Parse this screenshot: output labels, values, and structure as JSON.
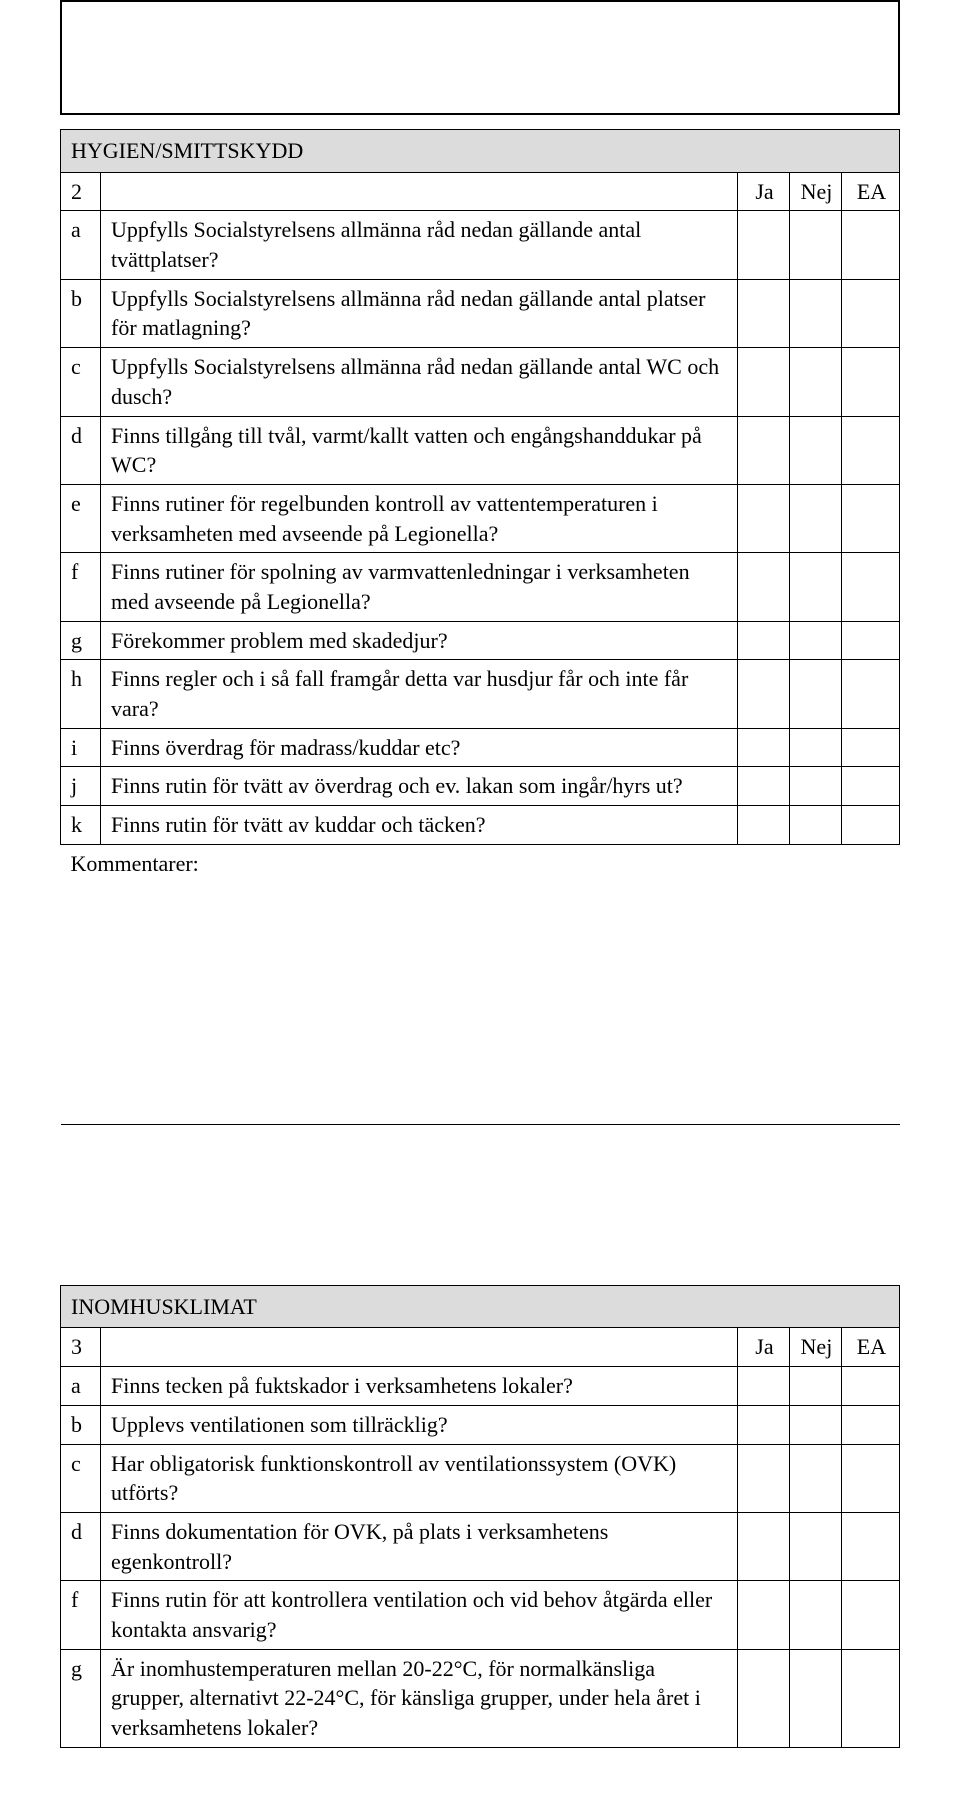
{
  "colors": {
    "section_bg": "#dcdcdc",
    "border": "#000000",
    "page_bg": "#ffffff",
    "text": "#000000"
  },
  "headers": {
    "ja": "Ja",
    "nej": "Nej",
    "ea": "EA"
  },
  "kommentarer_label": "Kommentarer:",
  "section2": {
    "title": "HYGIEN/SMITTSKYDD",
    "number": "2",
    "rows": [
      {
        "letter": "a",
        "text": "Uppfylls Socialstyrelsens allmänna råd nedan gällande antal tvättplatser?"
      },
      {
        "letter": "b",
        "text": "Uppfylls Socialstyrelsens allmänna råd nedan gällande antal platser för matlagning?"
      },
      {
        "letter": "c",
        "text": "Uppfylls Socialstyrelsens allmänna råd nedan gällande antal WC och dusch?"
      },
      {
        "letter": "d",
        "text": "Finns tillgång till tvål, varmt/kallt vatten och engångshanddukar på WC?"
      },
      {
        "letter": "e",
        "text": "Finns rutiner för regelbunden kontroll av vattentemperaturen i verksamheten med avseende på Legionella?"
      },
      {
        "letter": "f",
        "text": "Finns rutiner för spolning av varmvattenledningar i verksamheten med avseende på Legionella?"
      },
      {
        "letter": "g",
        "text": "Förekommer problem med skadedjur?"
      },
      {
        "letter": "h",
        "text": "Finns regler och i så fall framgår detta var husdjur får och inte får vara?"
      },
      {
        "letter": "i",
        "text": "Finns överdrag för madrass/kuddar etc?"
      },
      {
        "letter": "j",
        "text": "Finns rutin för tvätt av överdrag och ev. lakan som ingår/hyrs ut?"
      },
      {
        "letter": "k",
        "text": "Finns rutin för tvätt av kuddar och täcken?"
      }
    ]
  },
  "section3": {
    "title": "INOMHUSKLIMAT",
    "number": "3",
    "rows": [
      {
        "letter": "a",
        "text": "Finns tecken på fuktskador i verksamhetens lokaler?"
      },
      {
        "letter": "b",
        "text": "Upplevs ventilationen som tillräcklig?"
      },
      {
        "letter": "c",
        "text": "Har obligatorisk funktionskontroll av ventilationssystem (OVK) utförts?"
      },
      {
        "letter": "d",
        "text": "Finns dokumentation för OVK, på plats i verksamhetens egenkontroll?"
      },
      {
        "letter": "f",
        "text": "Finns rutin för att kontrollera ventilation och vid behov åtgärda eller kontakta ansvarig?"
      },
      {
        "letter": "g",
        "text": "Är inomhustemperaturen mellan 20-22°C, för normalkänsliga grupper, alternativt 22-24°C, för känsliga grupper, under hela året i verksamhetens lokaler?"
      }
    ]
  }
}
